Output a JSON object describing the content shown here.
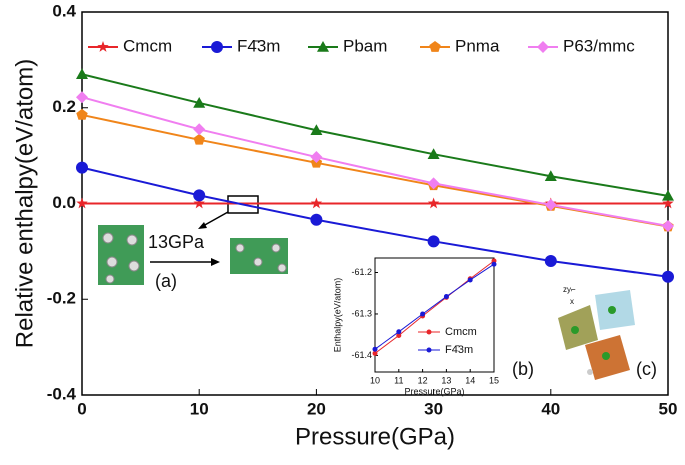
{
  "chart_data": [
    {
      "type": "line",
      "xlabel": "Pressure(GPa)",
      "ylabel": "Relative enthalpy(eV/atom)",
      "x": [
        0,
        10,
        20,
        30,
        40,
        50
      ],
      "xlim": [
        0,
        50
      ],
      "ylim": [
        -0.4,
        0.4
      ],
      "xticks": [
        0,
        10,
        20,
        30,
        40,
        50
      ],
      "yticks": [
        0.4,
        0.2,
        {
          "value": 0,
          "label": "0.0"
        },
        -0.2,
        -0.4
      ],
      "legend": "top",
      "series": [
        {
          "name": "Cmcm",
          "color": "#e8262a",
          "marker": "star",
          "values": [
            0,
            0,
            0,
            0,
            0,
            0
          ]
        },
        {
          "name": "F4̄3m",
          "color": "#1a1ad6",
          "marker": "circle",
          "values": [
            0.075,
            0.017,
            -0.034,
            -0.079,
            -0.12,
            -0.153
          ]
        },
        {
          "name": "Pbam",
          "color": "#1a7a1a",
          "marker": "triangle",
          "values": [
            0.27,
            0.21,
            0.153,
            0.103,
            0.057,
            0.016
          ]
        },
        {
          "name": "Pnma",
          "color": "#f0851a",
          "marker": "pentagon",
          "values": [
            0.185,
            0.133,
            0.085,
            0.038,
            -0.005,
            -0.048
          ]
        },
        {
          "name": "P63/mmc",
          "color": "#f07ef0",
          "marker": "diamond",
          "values": [
            0.222,
            0.155,
            0.097,
            0.042,
            -0.003,
            -0.047
          ]
        }
      ],
      "annotations": [
        "13GPa",
        "(a)",
        "(b)",
        "(c)"
      ]
    },
    {
      "type": "line",
      "xlabel": "Pressure(GPa)",
      "ylabel": "Enthalpy(eV/atom)",
      "x": [
        10,
        11,
        12,
        13,
        14,
        15
      ],
      "xlim": [
        10,
        15
      ],
      "ylim": [
        -61.44,
        -61.165
      ],
      "xticks": [
        10,
        11,
        12,
        13,
        14,
        15
      ],
      "yticks": [
        -61.2,
        -61.3,
        -61.4
      ],
      "legend": "lower right",
      "series": [
        {
          "name": "Cmcm",
          "color": "#e8262a",
          "marker": "dot",
          "values": [
            -61.395,
            -61.352,
            -61.305,
            -61.26,
            -61.215,
            -61.172
          ]
        },
        {
          "name": "F4̄3m",
          "color": "#1a1ad6",
          "marker": "dot",
          "values": [
            -61.385,
            -61.343,
            -61.3,
            -61.258,
            -61.218,
            -61.18
          ]
        }
      ]
    }
  ]
}
